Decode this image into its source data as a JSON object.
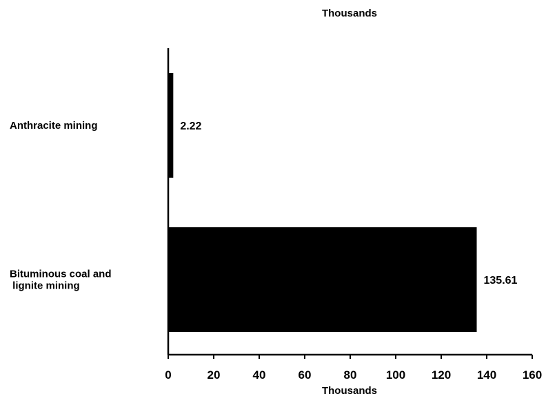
{
  "chart_data": {
    "type": "bar",
    "orientation": "horizontal",
    "title": "Thousands",
    "xlabel": "Thousands",
    "ylabel": "",
    "categories": [
      [
        "Anthracite mining"
      ],
      [
        "Bituminous coal and",
        " lignite mining"
      ]
    ],
    "values": [
      2.22,
      135.61
    ],
    "data_labels": [
      "2.22",
      "135.61"
    ],
    "xlim": [
      0,
      160
    ],
    "xticks": [
      0,
      20,
      40,
      60,
      80,
      100,
      120,
      140,
      160
    ],
    "grid": false,
    "bar_color": "#000000"
  }
}
